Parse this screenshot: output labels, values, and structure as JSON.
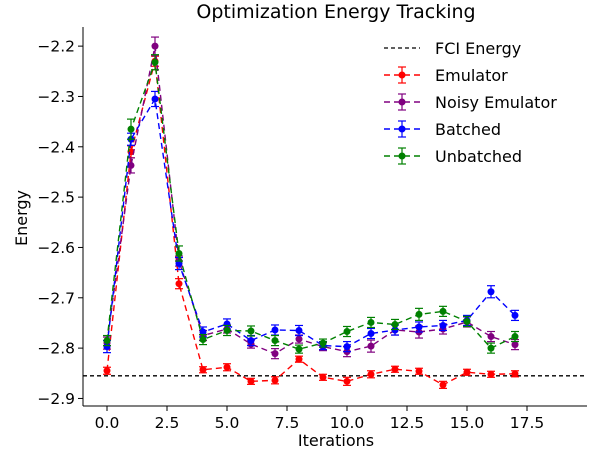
{
  "chart_data": {
    "type": "line",
    "title": "Optimization Energy Tracking",
    "xlabel": "Iterations",
    "ylabel": "Energy",
    "xlim": [
      -1,
      20
    ],
    "ylim": [
      -2.915,
      -2.162
    ],
    "xticks": [
      0.0,
      2.5,
      5.0,
      7.5,
      10.0,
      12.5,
      15.0,
      17.5
    ],
    "xtick_labels": [
      "0.0",
      "2.5",
      "5.0",
      "7.5",
      "10.0",
      "12.5",
      "15.0",
      "17.5"
    ],
    "yticks": [
      -2.9,
      -2.8,
      -2.7,
      -2.6,
      -2.5,
      -2.4,
      -2.3,
      -2.2
    ],
    "ytick_labels": [
      "−2.9",
      "−2.8",
      "−2.7",
      "−2.6",
      "−2.5",
      "−2.4",
      "−2.3",
      "−2.2"
    ],
    "grid": false,
    "legend_position": "top-right",
    "reference_line": {
      "name": "FCI Energy",
      "y": -2.855,
      "color": "#000000"
    },
    "series": [
      {
        "name": "Emulator",
        "color": "#ff0000",
        "x": [
          0,
          1,
          2,
          3,
          4,
          5,
          6,
          7,
          8,
          9,
          10,
          11,
          12,
          13,
          14,
          15,
          16,
          17
        ],
        "y": [
          -2.845,
          -2.41,
          -2.23,
          -2.672,
          -2.843,
          -2.838,
          -2.866,
          -2.864,
          -2.822,
          -2.858,
          -2.866,
          -2.852,
          -2.842,
          -2.846,
          -2.873,
          -2.848,
          -2.852,
          -2.851
        ],
        "err": [
          0.007,
          0.012,
          0.01,
          0.01,
          0.006,
          0.007,
          0.006,
          0.007,
          0.006,
          0.006,
          0.008,
          0.007,
          0.006,
          0.006,
          0.007,
          0.006,
          0.006,
          0.006
        ]
      },
      {
        "name": "Noisy Emulator",
        "color": "#800080",
        "x": [
          0,
          1,
          2,
          3,
          4,
          5,
          6,
          7,
          8,
          9,
          10,
          11,
          12,
          13,
          14,
          15,
          16,
          17
        ],
        "y": [
          -2.79,
          -2.437,
          -2.2,
          -2.627,
          -2.775,
          -2.762,
          -2.792,
          -2.811,
          -2.782,
          -2.797,
          -2.807,
          -2.796,
          -2.764,
          -2.768,
          -2.762,
          -2.748,
          -2.777,
          -2.793
        ],
        "err": [
          0.012,
          0.015,
          0.018,
          0.01,
          0.01,
          0.008,
          0.008,
          0.01,
          0.008,
          0.008,
          0.01,
          0.012,
          0.01,
          0.012,
          0.01,
          0.01,
          0.01,
          0.01
        ]
      },
      {
        "name": "Batched",
        "color": "#0000ff",
        "x": [
          0,
          1,
          2,
          3,
          4,
          5,
          6,
          7,
          8,
          9,
          10,
          11,
          12,
          13,
          14,
          15,
          16,
          17
        ],
        "y": [
          -2.797,
          -2.385,
          -2.305,
          -2.632,
          -2.768,
          -2.752,
          -2.785,
          -2.764,
          -2.765,
          -2.795,
          -2.797,
          -2.771,
          -2.764,
          -2.758,
          -2.755,
          -2.745,
          -2.688,
          -2.735
        ],
        "err": [
          0.012,
          0.012,
          0.015,
          0.012,
          0.01,
          0.01,
          0.01,
          0.01,
          0.01,
          0.008,
          0.01,
          0.01,
          0.01,
          0.01,
          0.01,
          0.01,
          0.012,
          0.01
        ]
      },
      {
        "name": "Unbatched",
        "color": "#008000",
        "x": [
          0,
          1,
          2,
          3,
          4,
          5,
          6,
          7,
          8,
          9,
          10,
          11,
          12,
          13,
          14,
          15,
          16,
          17
        ],
        "y": [
          -2.785,
          -2.365,
          -2.232,
          -2.612,
          -2.783,
          -2.765,
          -2.766,
          -2.785,
          -2.802,
          -2.79,
          -2.767,
          -2.749,
          -2.753,
          -2.733,
          -2.727,
          -2.747,
          -2.8,
          -2.777
        ],
        "err": [
          0.01,
          0.02,
          0.015,
          0.015,
          0.01,
          0.01,
          0.01,
          0.01,
          0.008,
          0.008,
          0.01,
          0.01,
          0.01,
          0.012,
          0.01,
          0.01,
          0.01,
          0.01
        ]
      }
    ]
  }
}
